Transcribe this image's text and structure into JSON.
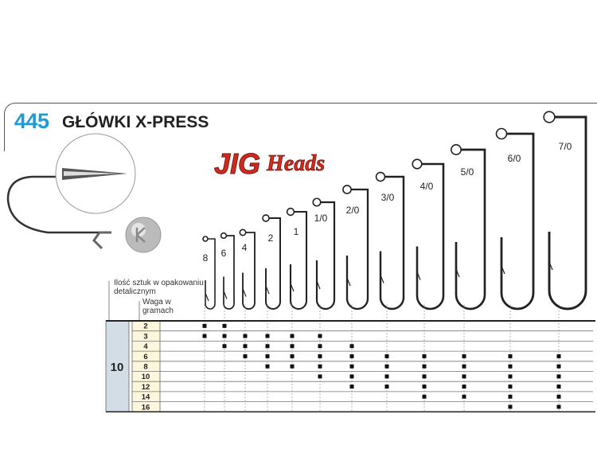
{
  "header": {
    "code": "445",
    "title": "GŁÓWKI X-PRESS",
    "logo": "JIG Heads"
  },
  "labels": {
    "pack_qty": "Ilość sztuk w opakowaniu detalicznym",
    "weight": "Waga w gramach"
  },
  "colors": {
    "code": "#1e9ad6",
    "qty_cell": "#d3dde6",
    "weight_cell": "#fbf6dc",
    "logo_red": "#d32a1e"
  },
  "hook_sizes": [
    "8",
    "6",
    "4",
    "2",
    "1",
    "1/0",
    "2/0",
    "3/0",
    "4/0",
    "5/0",
    "6/0",
    "7/0"
  ],
  "table": {
    "pack_qty": "10",
    "rows": [
      {
        "weight": "2",
        "available": [
          "8",
          "6"
        ]
      },
      {
        "weight": "3",
        "available": [
          "8",
          "6",
          "4",
          "2",
          "1",
          "1/0"
        ]
      },
      {
        "weight": "4",
        "available": [
          "6",
          "4",
          "2",
          "1",
          "1/0",
          "2/0"
        ]
      },
      {
        "weight": "6",
        "available": [
          "4",
          "2",
          "1",
          "1/0",
          "2/0",
          "3/0",
          "4/0",
          "5/0",
          "6/0",
          "7/0"
        ]
      },
      {
        "weight": "8",
        "available": [
          "2",
          "1",
          "1/0",
          "2/0",
          "3/0",
          "4/0",
          "5/0",
          "6/0",
          "7/0"
        ]
      },
      {
        "weight": "10",
        "available": [
          "1/0",
          "2/0",
          "3/0",
          "4/0",
          "5/0",
          "6/0",
          "7/0"
        ]
      },
      {
        "weight": "12",
        "available": [
          "2/0",
          "3/0",
          "4/0",
          "5/0",
          "6/0",
          "7/0"
        ]
      },
      {
        "weight": "14",
        "available": [
          "4/0",
          "5/0",
          "6/0",
          "7/0"
        ]
      },
      {
        "weight": "16",
        "available": [
          "6/0",
          "7/0"
        ]
      }
    ]
  }
}
